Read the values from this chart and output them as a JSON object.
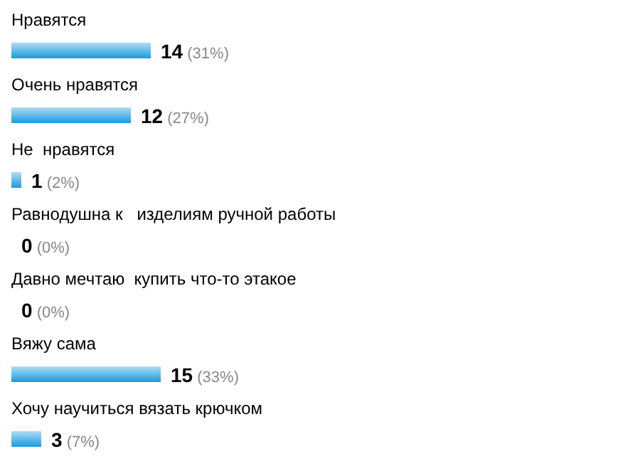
{
  "chart_data": {
    "type": "bar",
    "orientation": "horizontal",
    "categories": [
      "Нравятся",
      "Очень нравятся",
      "Не  нравятся",
      "Равнодушна к   изделиям ручной работы",
      "Давно мечтаю  купить что-то этакое",
      "Вяжу сама",
      "Хочу научиться вязать крючком"
    ],
    "values": [
      14,
      12,
      1,
      0,
      0,
      15,
      3
    ],
    "value_labels": [
      "14 (31%)",
      "12 (27%)",
      "1 (2%)",
      "0 (0%)",
      "0 (0%)",
      "15 (33%)",
      "3 (7%)"
    ],
    "color": "#1a9ade"
  }
}
